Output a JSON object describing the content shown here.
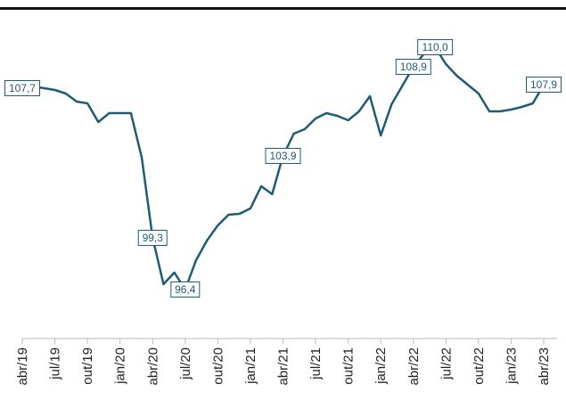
{
  "chart_data": {
    "type": "line",
    "categories": [
      "abr/19",
      null,
      null,
      "jul/19",
      null,
      null,
      "out/19",
      null,
      null,
      "jan/20",
      null,
      null,
      "abr/20",
      null,
      null,
      "jul/20",
      null,
      null,
      "out/20",
      null,
      null,
      "jan/21",
      null,
      null,
      "abr/21",
      null,
      null,
      "jul/21",
      null,
      null,
      "out/21",
      null,
      null,
      "jan/22",
      null,
      null,
      "abr/22",
      null,
      null,
      "jul/22",
      null,
      null,
      "out/22",
      null,
      null,
      "jan/23",
      null,
      null,
      "abr/23"
    ],
    "values": [
      107.7,
      107.8,
      107.7,
      107.6,
      107.4,
      106.95,
      106.85,
      105.8,
      106.3,
      106.3,
      106.3,
      103.8,
      99.3,
      96.7,
      97.35,
      96.4,
      98.05,
      99.15,
      100.0,
      100.6,
      100.65,
      100.95,
      102.2,
      101.75,
      103.9,
      105.15,
      105.4,
      106.0,
      106.3,
      106.15,
      105.9,
      106.4,
      107.25,
      105.05,
      106.8,
      107.85,
      108.9,
      109.65,
      110.0,
      109.05,
      108.4,
      107.9,
      107.4,
      106.4,
      106.4,
      106.5,
      106.65,
      106.85,
      107.9
    ],
    "value_labels": [
      "107,7",
      null,
      null,
      null,
      null,
      null,
      null,
      null,
      null,
      null,
      null,
      null,
      "99,3",
      null,
      null,
      "96,4",
      null,
      null,
      null,
      null,
      null,
      null,
      null,
      null,
      "103,9",
      null,
      null,
      null,
      null,
      null,
      null,
      null,
      null,
      null,
      null,
      null,
      "108,9",
      null,
      "110,0",
      null,
      null,
      null,
      null,
      null,
      null,
      null,
      null,
      null,
      "107,9"
    ],
    "color": "#1d5c77",
    "ylim": [
      93.65,
      111.65
    ]
  }
}
